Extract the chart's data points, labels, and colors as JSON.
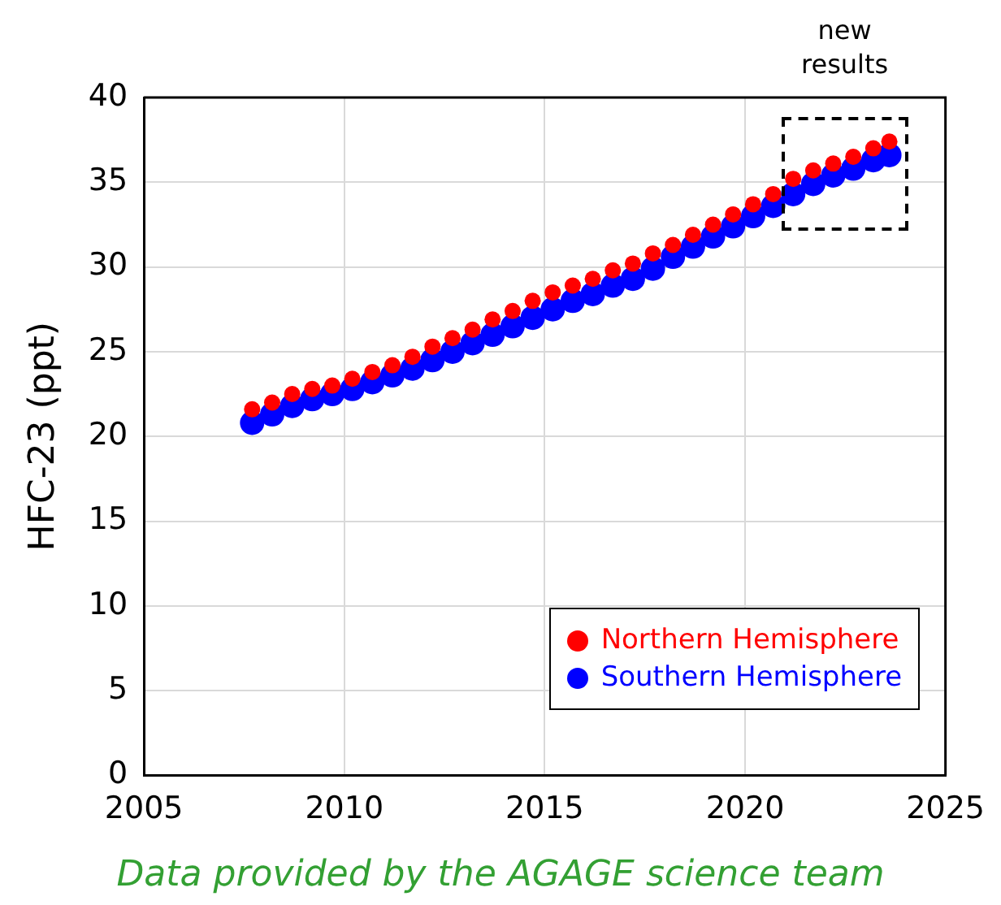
{
  "chart_data": {
    "type": "scatter",
    "ylabel": "HFC-23 (ppt)",
    "xlim": [
      2005,
      2025
    ],
    "xticks": [
      2005,
      2010,
      2015,
      2020,
      2025
    ],
    "ylim": [
      0,
      40
    ],
    "yticks": [
      0,
      5,
      10,
      15,
      20,
      25,
      30,
      35,
      40
    ],
    "grid": true,
    "legend": "bottom right",
    "marker": "circle",
    "x": [
      2007.7,
      2008.2,
      2008.7,
      2009.2,
      2009.7,
      2010.2,
      2010.7,
      2011.2,
      2011.7,
      2012.2,
      2012.7,
      2013.2,
      2013.7,
      2014.2,
      2014.7,
      2015.2,
      2015.7,
      2016.2,
      2016.7,
      2017.2,
      2017.7,
      2018.2,
      2018.7,
      2019.2,
      2019.7,
      2020.2,
      2020.7,
      2021.2,
      2021.7,
      2022.2,
      2022.7,
      2023.2,
      2023.6
    ],
    "series": [
      {
        "name": "Northern Hemisphere",
        "color": "#ff0000",
        "values": [
          21.6,
          22.0,
          22.5,
          22.8,
          23.0,
          23.4,
          23.8,
          24.2,
          24.7,
          25.3,
          25.8,
          26.3,
          26.9,
          27.4,
          28.0,
          28.5,
          28.9,
          29.3,
          29.8,
          30.2,
          30.8,
          31.3,
          31.9,
          32.5,
          33.1,
          33.7,
          34.3,
          35.2,
          35.7,
          36.1,
          36.5,
          37.0,
          37.4
        ]
      },
      {
        "name": "Southern Hemisphere",
        "color": "#0000ff",
        "values": [
          20.8,
          21.3,
          21.8,
          22.2,
          22.5,
          22.8,
          23.2,
          23.6,
          24.0,
          24.5,
          25.0,
          25.5,
          26.0,
          26.5,
          27.0,
          27.5,
          28.0,
          28.4,
          28.9,
          29.3,
          29.9,
          30.6,
          31.2,
          31.8,
          32.4,
          33.0,
          33.6,
          34.3,
          34.9,
          35.4,
          35.8,
          36.3,
          36.6
        ]
      }
    ],
    "annotations": [
      "new results",
      "Data provided by the AGAGE science team"
    ]
  }
}
